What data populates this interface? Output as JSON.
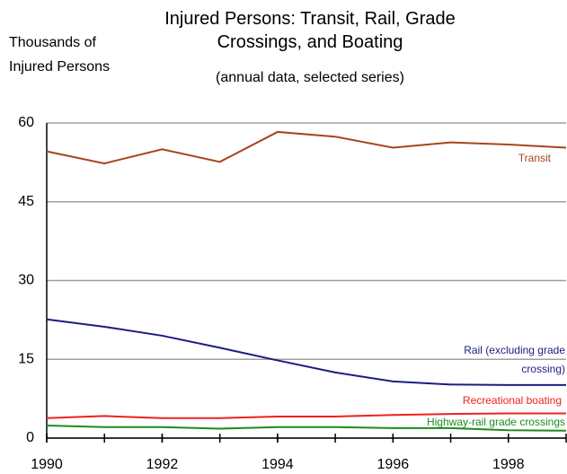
{
  "chart_data": {
    "type": "line",
    "title": "Injured Persons: Transit, Rail, Grade Crossings, and Boating",
    "subtitle": "(annual data, selected series)",
    "y_label": "Thousands of Injured Persons",
    "x": [
      1990,
      1991,
      1992,
      1993,
      1994,
      1995,
      1996,
      1997,
      1998,
      1999
    ],
    "series": [
      {
        "name": "Transit",
        "color": "#a8441c",
        "values": [
          54.6,
          52.3,
          55.0,
          52.6,
          58.3,
          57.4,
          55.3,
          56.3,
          55.9,
          55.3
        ]
      },
      {
        "name": "Rail (excluding grade crossing)",
        "color": "#1c1c84",
        "values": [
          22.6,
          21.2,
          19.5,
          17.2,
          14.8,
          12.5,
          10.8,
          10.2,
          10.1,
          10.1
        ]
      },
      {
        "name": "Recreational boating",
        "color": "#f02020",
        "values": [
          3.8,
          4.2,
          3.8,
          3.8,
          4.1,
          4.1,
          4.4,
          4.6,
          4.7,
          4.7
        ]
      },
      {
        "name": "Highway-rail grade crossings",
        "color": "#1c8c1c",
        "values": [
          2.4,
          2.1,
          2.1,
          1.8,
          2.1,
          2.1,
          1.9,
          1.9,
          1.5,
          1.4
        ]
      }
    ],
    "xlim": [
      1990,
      1999
    ],
    "xticks": [
      1990,
      1992,
      1994,
      1996,
      1998
    ],
    "ylim": [
      0,
      60
    ],
    "yticks": [
      0,
      15,
      30,
      45,
      60
    ],
    "grid": true
  }
}
